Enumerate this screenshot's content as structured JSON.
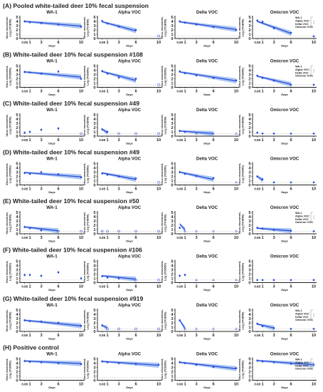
{
  "figure": {
    "row_titles": [
      "(A) Pooled white-tailed deer 10% fecal suspension",
      "(B) White-tailed deer 10% fecal suspension #108",
      "(C) White-tailed deer 10% fecal suspension #49",
      "(D) White-tailed deer 10% fecal suspension #49",
      "(E) White-tailed deer 10% fecal suspension #50",
      "(F) White-tailed deer 10% fecal suspension #106",
      "(G) White-tailed deer 10% fecal suspension #919",
      "(H) Positive control"
    ],
    "panel_titles": [
      "WA-1",
      "Alpha VOC",
      "Delta VOC",
      "Omicron VOC"
    ],
    "x_label": "Days",
    "y_label_line1": "Virus recovered,",
    "y_label_line2": "Log (TCID50)",
    "x_ticks": [
      "0.08",
      "1",
      "3",
      "6",
      "10"
    ],
    "y_ticks": [
      "0",
      "1",
      "2",
      "3",
      "4",
      "5"
    ],
    "legend_rows": [
      0,
      1,
      4,
      6,
      7
    ],
    "legend_entries": [
      "WA-1",
      "Alpha VOC",
      "Delta VOC",
      "Omicron VOC"
    ],
    "colors": {
      "series": "#2a4bdc",
      "band": "#8fb4ec",
      "axis": "#222222",
      "legend_line": "#888888"
    }
  },
  "chart_data": [
    {
      "row": "A",
      "variant": "WA-1",
      "type": "scatter",
      "xlim": [
        0.08,
        10
      ],
      "ylim": [
        0,
        5
      ],
      "x": [
        0.08,
        1,
        3,
        6,
        10
      ],
      "y": [
        4.0,
        3.8,
        3.6,
        3.3,
        2.8
      ],
      "fit": [
        [
          0.08,
          4.0
        ],
        [
          10,
          2.9
        ]
      ]
    },
    {
      "row": "A",
      "variant": "Alpha VOC",
      "type": "scatter",
      "xlim": [
        0.08,
        10
      ],
      "ylim": [
        0,
        5
      ],
      "x": [
        0.08,
        1,
        3,
        6,
        10
      ],
      "y": [
        4.1,
        3.5,
        2.8,
        2.0,
        0.6
      ],
      "fit": [
        [
          0.08,
          3.9
        ],
        [
          6,
          1.8
        ]
      ]
    },
    {
      "row": "A",
      "variant": "Delta VOC",
      "type": "scatter",
      "xlim": [
        0.08,
        10
      ],
      "ylim": [
        0,
        5
      ],
      "x": [
        0.08,
        1,
        3,
        6,
        10
      ],
      "y": [
        4.0,
        3.7,
        3.3,
        2.7,
        2.0
      ],
      "fit": [
        [
          0.08,
          3.9
        ],
        [
          10,
          2.1
        ]
      ]
    },
    {
      "row": "A",
      "variant": "Omicron VOC",
      "type": "scatter",
      "xlim": [
        0.08,
        10
      ],
      "ylim": [
        0,
        5
      ],
      "x": [
        0.08,
        1,
        3,
        6,
        10
      ],
      "y": [
        4.2,
        3.9,
        2.4,
        1.3,
        0.5
      ],
      "fit": [
        [
          0.08,
          4.0
        ],
        [
          6,
          1.2
        ]
      ]
    },
    {
      "row": "B",
      "variant": "WA-1",
      "type": "scatter",
      "xlim": [
        0.08,
        10
      ],
      "ylim": [
        0,
        5
      ],
      "x": [
        0.08,
        1,
        3,
        6,
        10
      ],
      "y": [
        3.6,
        3.5,
        3.2,
        3.7,
        2.0
      ],
      "fit": [
        [
          0.08,
          3.6
        ],
        [
          10,
          2.4
        ]
      ]
    },
    {
      "row": "B",
      "variant": "Alpha VOC",
      "type": "scatter",
      "xlim": [
        0.08,
        10
      ],
      "ylim": [
        0,
        5
      ],
      "x": [
        0.08,
        1,
        3,
        6,
        10
      ],
      "y": [
        3.8,
        3.2,
        2.3,
        2.0,
        0.6
      ],
      "fit": [
        [
          0.08,
          3.7
        ],
        [
          6,
          1.6
        ]
      ]
    },
    {
      "row": "B",
      "variant": "Delta VOC",
      "type": "scatter",
      "xlim": [
        0.08,
        10
      ],
      "ylim": [
        0,
        5
      ],
      "x": [
        0.08,
        1,
        3,
        6,
        10
      ],
      "y": [
        3.7,
        3.3,
        2.8,
        2.2,
        1.6
      ],
      "fit": [
        [
          0.08,
          3.6
        ],
        [
          10,
          1.5
        ]
      ]
    },
    {
      "row": "B",
      "variant": "Omicron VOC",
      "type": "scatter",
      "xlim": [
        0.08,
        10
      ],
      "ylim": [
        0,
        5
      ],
      "x": [
        0.08,
        1,
        3,
        6,
        10
      ],
      "y": [
        2.7,
        2.2,
        1.6,
        0.6,
        0.6
      ],
      "fit": [
        [
          0.08,
          2.6
        ],
        [
          6,
          0.7
        ]
      ]
    },
    {
      "row": "C",
      "variant": "WA-1",
      "type": "scatter",
      "xlim": [
        0.08,
        10
      ],
      "ylim": [
        0,
        5
      ],
      "x": [
        0.08,
        1,
        3,
        6,
        10
      ],
      "y": [
        0.8,
        1.0,
        1.5,
        1.8,
        0.6
      ],
      "fit": []
    },
    {
      "row": "C",
      "variant": "Alpha VOC",
      "type": "scatter",
      "xlim": [
        0.08,
        10
      ],
      "ylim": [
        0,
        5
      ],
      "x": [
        0.08,
        1,
        3,
        6,
        10
      ],
      "y": [
        1.6,
        1.0,
        0.6,
        0.6,
        0.6
      ],
      "fit": [
        [
          0.08,
          1.6
        ],
        [
          1,
          0.8
        ]
      ]
    },
    {
      "row": "C",
      "variant": "Delta VOC",
      "type": "scatter",
      "xlim": [
        0.08,
        10
      ],
      "ylim": [
        0,
        5
      ],
      "x": [
        0.08,
        1,
        3,
        6,
        10
      ],
      "y": [
        1.2,
        1.0,
        0.6,
        0.6,
        0.6
      ],
      "fit": [
        [
          0.08,
          1.2
        ],
        [
          6,
          0.6
        ]
      ]
    },
    {
      "row": "C",
      "variant": "Omicron VOC",
      "type": "scatter",
      "xlim": [
        0.08,
        10
      ],
      "ylim": [
        0,
        5
      ],
      "x": [
        0.08,
        1,
        3,
        6,
        10
      ],
      "y": [
        0.8,
        0.6,
        0.6,
        0.6,
        0.6
      ],
      "fit": []
    },
    {
      "row": "D",
      "variant": "WA-1",
      "type": "scatter",
      "xlim": [
        0.08,
        10
      ],
      "ylim": [
        0,
        5
      ],
      "x": [
        0.08,
        1,
        3,
        6,
        10
      ],
      "y": [
        2.8,
        2.6,
        3.0,
        2.5,
        1.8
      ],
      "fit": [
        [
          0.08,
          2.9
        ],
        [
          10,
          1.9
        ]
      ]
    },
    {
      "row": "D",
      "variant": "Alpha VOC",
      "type": "scatter",
      "xlim": [
        0.08,
        10
      ],
      "ylim": [
        0,
        5
      ],
      "x": [
        0.08,
        1,
        3,
        6,
        10
      ],
      "y": [
        2.7,
        2.4,
        2.0,
        1.5,
        0.6
      ],
      "fit": [
        [
          0.08,
          2.8
        ],
        [
          6,
          1.3
        ]
      ]
    },
    {
      "row": "D",
      "variant": "Delta VOC",
      "type": "scatter",
      "xlim": [
        0.08,
        10
      ],
      "ylim": [
        0,
        5
      ],
      "x": [
        0.08,
        1,
        3,
        6,
        10
      ],
      "y": [
        3.0,
        2.6,
        2.1,
        1.6,
        0.6
      ],
      "fit": [
        [
          0.08,
          3.0
        ],
        [
          6,
          1.3
        ]
      ]
    },
    {
      "row": "D",
      "variant": "Omicron VOC",
      "type": "scatter",
      "xlim": [
        0.08,
        10
      ],
      "ylim": [
        0,
        5
      ],
      "x": [
        0.08,
        1,
        3,
        6,
        10
      ],
      "y": [
        2.0,
        1.3,
        0.6,
        0.6,
        0.6
      ],
      "fit": [
        [
          0.08,
          2.0
        ],
        [
          1,
          1.1
        ]
      ]
    },
    {
      "row": "E",
      "variant": "WA-1",
      "type": "scatter",
      "xlim": [
        0.08,
        10
      ],
      "ylim": [
        0,
        5
      ],
      "x": [
        0.08,
        1,
        3,
        6,
        10
      ],
      "y": [
        1.6,
        1.3,
        0.8,
        0.6,
        0.6
      ],
      "fit": [
        [
          0.08,
          1.6
        ],
        [
          6,
          0.7
        ]
      ]
    },
    {
      "row": "E",
      "variant": "Alpha VOC",
      "type": "scatter",
      "xlim": [
        0.08,
        10
      ],
      "ylim": [
        0,
        5
      ],
      "x": [
        0.08,
        1,
        3,
        6,
        10
      ],
      "y": [
        0.6,
        0.6,
        0.6,
        0.6,
        0.6
      ],
      "fit": []
    },
    {
      "row": "E",
      "variant": "Delta VOC",
      "type": "scatter",
      "xlim": [
        0.08,
        10
      ],
      "ylim": [
        0,
        5
      ],
      "x": [
        0.08,
        1,
        3,
        6,
        10
      ],
      "y": [
        1.4,
        0.6,
        0.6,
        0.6,
        0.6
      ],
      "fit": [
        [
          0.08,
          2.3
        ],
        [
          1,
          0.9
        ]
      ]
    },
    {
      "row": "E",
      "variant": "Omicron VOC",
      "type": "scatter",
      "xlim": [
        0.08,
        10
      ],
      "ylim": [
        0,
        5
      ],
      "x": [
        0.08,
        1,
        3,
        6,
        10
      ],
      "y": [
        1.4,
        1.2,
        0.9,
        0.7,
        0.6
      ],
      "fit": [
        [
          0.08,
          1.3
        ],
        [
          6,
          0.7
        ]
      ]
    },
    {
      "row": "F",
      "variant": "WA-1",
      "type": "scatter",
      "xlim": [
        0.08,
        10
      ],
      "ylim": [
        0,
        5
      ],
      "x": [
        0.08,
        1,
        3,
        6,
        10
      ],
      "y": [
        1.8,
        1.8,
        1.6,
        2.4,
        1.0
      ],
      "fit": []
    },
    {
      "row": "F",
      "variant": "Alpha VOC",
      "type": "scatter",
      "xlim": [
        0.08,
        10
      ],
      "ylim": [
        0,
        5
      ],
      "x": [
        0.08,
        1,
        3,
        6,
        10
      ],
      "y": [
        1.5,
        1.2,
        1.0,
        0.6,
        0.6
      ],
      "fit": [
        [
          0.08,
          1.6
        ],
        [
          6,
          0.8
        ]
      ]
    },
    {
      "row": "F",
      "variant": "Delta VOC",
      "type": "scatter",
      "xlim": [
        0.08,
        10
      ],
      "ylim": [
        0,
        5
      ],
      "x": [
        0.08,
        1,
        3,
        6,
        10
      ],
      "y": [
        1.6,
        1.8,
        0.6,
        0.6,
        0.6
      ],
      "fit": []
    },
    {
      "row": "F",
      "variant": "Omicron VOC",
      "type": "scatter",
      "xlim": [
        0.08,
        10
      ],
      "ylim": [
        0,
        5
      ],
      "x": [
        0.08,
        1,
        3,
        6,
        10
      ],
      "y": [
        0.6,
        0.6,
        0.6,
        0.6,
        0.6
      ],
      "fit": []
    },
    {
      "row": "G",
      "variant": "WA-1",
      "type": "scatter",
      "xlim": [
        0.08,
        10
      ],
      "ylim": [
        0,
        5
      ],
      "x": [
        0.08,
        1,
        3,
        6,
        10
      ],
      "y": [
        2.6,
        2.4,
        2.3,
        2.0,
        1.3
      ],
      "fit": [
        [
          0.08,
          2.6
        ],
        [
          10,
          1.3
        ]
      ]
    },
    {
      "row": "G",
      "variant": "Alpha VOC",
      "type": "scatter",
      "xlim": [
        0.08,
        10
      ],
      "ylim": [
        0,
        5
      ],
      "x": [
        0.08,
        1,
        3,
        6,
        10
      ],
      "y": [
        1.4,
        0.6,
        0.6,
        0.6,
        0.6
      ],
      "fit": [
        [
          0.08,
          1.4
        ],
        [
          1,
          0.8
        ]
      ]
    },
    {
      "row": "G",
      "variant": "Delta VOC",
      "type": "scatter",
      "xlim": [
        0.08,
        10
      ],
      "ylim": [
        0,
        5
      ],
      "x": [
        0.08,
        1,
        3,
        6,
        10
      ],
      "y": [
        2.6,
        0.6,
        0.6,
        0.6,
        0.6
      ],
      "fit": [
        [
          0.08,
          2.6
        ],
        [
          1,
          0.7
        ]
      ]
    },
    {
      "row": "G",
      "variant": "Omicron VOC",
      "type": "scatter",
      "xlim": [
        0.08,
        10
      ],
      "ylim": [
        0,
        5
      ],
      "x": [
        0.08,
        1,
        3,
        6,
        10
      ],
      "y": [
        1.8,
        1.2,
        0.8,
        0.6,
        0.6
      ],
      "fit": [
        [
          0.08,
          1.7
        ],
        [
          3,
          0.8
        ]
      ]
    },
    {
      "row": "H",
      "variant": "WA-1",
      "type": "scatter",
      "xlim": [
        0.08,
        10
      ],
      "ylim": [
        0,
        5
      ],
      "x": [
        0.08,
        1,
        3,
        6,
        10
      ],
      "y": [
        4.5,
        4.3,
        4.2,
        4.0,
        3.8
      ],
      "fit": [
        [
          0.08,
          4.5
        ],
        [
          10,
          3.9
        ]
      ]
    },
    {
      "row": "H",
      "variant": "Alpha VOC",
      "type": "scatter",
      "xlim": [
        0.08,
        10
      ],
      "ylim": [
        0,
        5
      ],
      "x": [
        0.08,
        1,
        3,
        6,
        10
      ],
      "y": [
        4.4,
        4.2,
        4.0,
        3.8,
        3.6
      ],
      "fit": [
        [
          0.08,
          4.4
        ],
        [
          10,
          3.5
        ]
      ]
    },
    {
      "row": "H",
      "variant": "Delta VOC",
      "type": "scatter",
      "xlim": [
        0.08,
        10
      ],
      "ylim": [
        0,
        5
      ],
      "x": [
        0.08,
        1,
        3,
        6,
        10
      ],
      "y": [
        4.2,
        4.0,
        3.6,
        3.1,
        2.8
      ],
      "fit": [
        [
          0.08,
          4.2
        ],
        [
          10,
          2.7
        ]
      ]
    },
    {
      "row": "H",
      "variant": "Omicron VOC",
      "type": "scatter",
      "xlim": [
        0.08,
        10
      ],
      "ylim": [
        0,
        5
      ],
      "x": [
        0.08,
        1,
        3,
        6,
        10
      ],
      "y": [
        4.6,
        4.4,
        4.2,
        3.9,
        3.6
      ],
      "fit": [
        [
          0.08,
          4.6
        ],
        [
          10,
          3.6
        ]
      ]
    }
  ]
}
